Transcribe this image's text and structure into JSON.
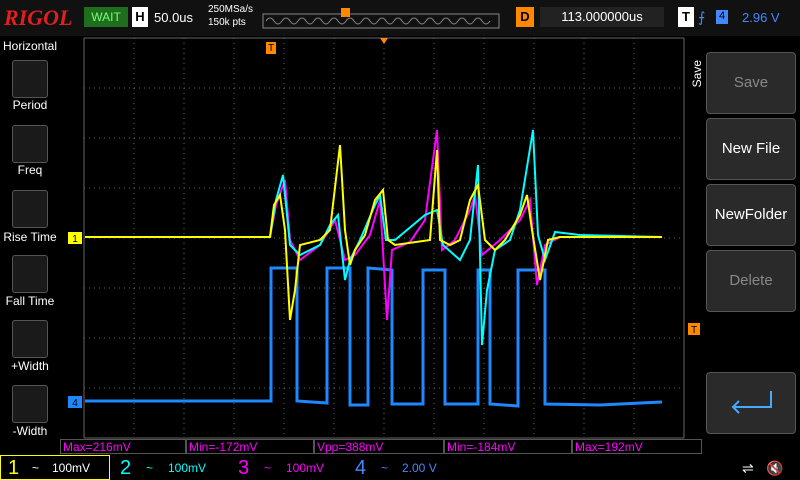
{
  "header": {
    "brand": "RIGOL",
    "status": "WAIT",
    "timebase_label": "H",
    "timebase": "50.0us",
    "sample_rate": "250MSa/s",
    "memory_depth": "150k pts",
    "delay_label": "D",
    "delay": "113.000000us",
    "trigger_label": "T",
    "trigger_source": "4",
    "trigger_level": "2.96 V"
  },
  "left_menu": {
    "title": "Horizontal",
    "items": [
      "Period",
      "Freq",
      "Rise Time",
      "Fall Time",
      "+Width",
      "-Width"
    ]
  },
  "right_menu": {
    "title": "Save",
    "items": [
      "Save",
      "New File",
      "NewFolder",
      "Delete"
    ]
  },
  "markers": {
    "ch1": "1",
    "ch4": "4",
    "trigger_top": "T",
    "trigger_level": "T"
  },
  "measurements": [
    "Max=216mV",
    "Min=-172mV",
    "Vpp=388mV",
    "Min=-184mV",
    "Max=192mV"
  ],
  "channels": [
    {
      "number": "1",
      "coupling": "~",
      "scale": "100mV"
    },
    {
      "number": "2",
      "coupling": "~",
      "scale": "100mV"
    },
    {
      "number": "3",
      "coupling": "~",
      "scale": "100mV"
    },
    {
      "number": "4",
      "coupling": "~",
      "scale": "2.00 V"
    }
  ]
}
